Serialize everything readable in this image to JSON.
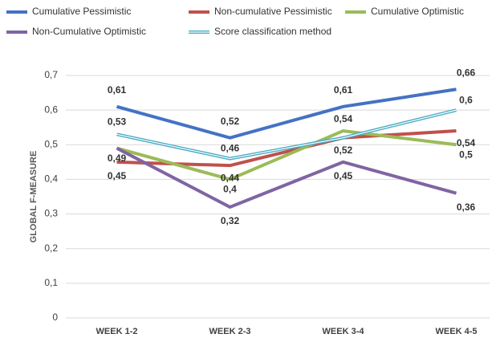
{
  "chart_data": {
    "type": "line",
    "y_label": "GLOBAL F-MEASURE",
    "categories": [
      "WEEK 1-2",
      "WEEK 2-3",
      "WEEK 3-4",
      "WEEK 4-5"
    ],
    "series": [
      {
        "name": "Cumulative Pessimistic",
        "color": "#4472c4",
        "values": [
          0.61,
          0.52,
          0.61,
          0.66
        ],
        "value_labels": [
          "0,61",
          "0,52",
          "0,61",
          "0,66"
        ]
      },
      {
        "name": "Non-cumulative Pessimistic",
        "color": "#c0504d",
        "values": [
          0.45,
          0.44,
          0.52,
          0.54
        ],
        "value_labels": [
          "0,45",
          "0,44",
          "0,52",
          "0,54"
        ]
      },
      {
        "name": "Cumulative Optimistic",
        "color": "#9bbb59",
        "values": [
          0.49,
          0.4,
          0.54,
          0.5
        ],
        "value_labels": [
          "0,49",
          "0,4",
          "0,54",
          "0,5"
        ]
      },
      {
        "name": "Non-Cumulative Optimistic",
        "color": "#8064a2",
        "values": [
          0.49,
          0.32,
          0.45,
          0.36
        ],
        "value_labels": [
          null,
          "0,32",
          "0,45",
          "0,36"
        ]
      },
      {
        "name": "Score classification method",
        "color": "#4bacc6",
        "values": [
          0.53,
          0.46,
          0.52,
          0.6
        ],
        "value_labels": [
          "0,53",
          "0,46",
          null,
          "0,6"
        ]
      }
    ],
    "ylim": [
      0,
      0.7
    ],
    "yticks": [
      0,
      {
        "value": 0.1,
        "label": "0,1"
      },
      {
        "value": 0.2,
        "label": "0,2"
      },
      {
        "value": 0.3,
        "label": "0,3"
      },
      {
        "value": 0.4,
        "label": "0,4"
      },
      {
        "value": 0.5,
        "label": "0,5"
      },
      {
        "value": 0.6,
        "label": "0,6"
      },
      {
        "value": 0.7,
        "label": "0,7"
      }
    ],
    "grid": true
  }
}
